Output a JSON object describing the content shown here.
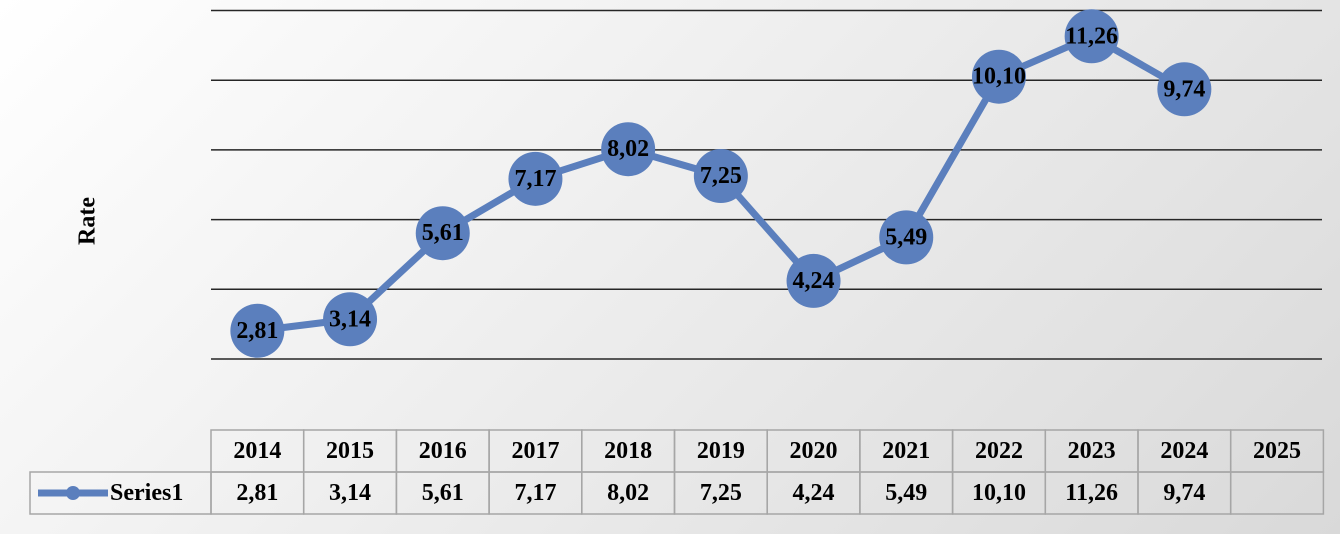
{
  "chart_data": {
    "type": "line",
    "ylabel": "Rate",
    "ylim": [
      0,
      12
    ],
    "grid": true,
    "categories": [
      "2014",
      "2015",
      "2016",
      "2017",
      "2018",
      "2019",
      "2020",
      "2021",
      "2022",
      "2023",
      "2024",
      "2025"
    ],
    "series": [
      {
        "name": "Series1",
        "color": "#5b7fbd",
        "values": [
          2.81,
          3.14,
          5.61,
          7.17,
          8.02,
          7.25,
          4.24,
          5.49,
          10.1,
          11.26,
          9.74,
          null
        ],
        "labels": [
          "2,81",
          "3,14",
          "5,61",
          "7,17",
          "8,02",
          "7,25",
          "4,24",
          "5,49",
          "10,10",
          "11,26",
          "9,74",
          ""
        ]
      }
    ],
    "legend": "data-table"
  }
}
